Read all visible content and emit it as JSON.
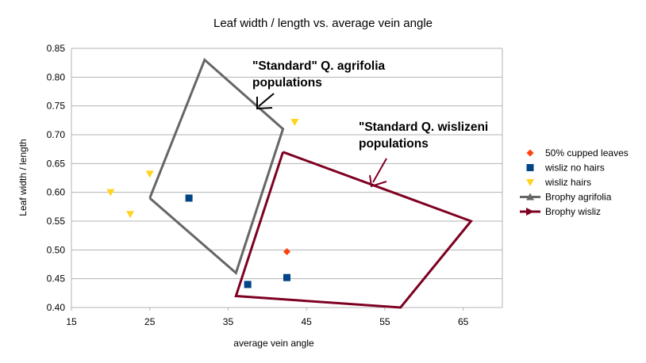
{
  "chart_data": {
    "type": "scatter",
    "title": "Leaf width / length vs. average vein angle",
    "xlabel": "average vein angle",
    "ylabel": "Leaf width / length",
    "xlim": [
      15,
      70
    ],
    "ylim": [
      0.4,
      0.85
    ],
    "x_ticks": [
      "15",
      "25",
      "35",
      "45",
      "55",
      "65"
    ],
    "y_ticks": [
      "0.40",
      "0.45",
      "0.50",
      "0.55",
      "0.60",
      "0.65",
      "0.70",
      "0.75",
      "0.80",
      "0.85"
    ],
    "grid": "horizontal",
    "legend_position": "right",
    "series": [
      {
        "name": "50% cupped leaves",
        "marker": "diamond",
        "color": "#ff420e",
        "points": [
          [
            42.5,
            0.497
          ]
        ]
      },
      {
        "name": "wisliz no hairs",
        "marker": "square",
        "color": "#004586",
        "points": [
          [
            30,
            0.59
          ],
          [
            37.5,
            0.44
          ],
          [
            42.5,
            0.452
          ]
        ]
      },
      {
        "name": "wisliz hairs",
        "marker": "triangle-down",
        "color": "#ffd320",
        "points": [
          [
            20,
            0.6
          ],
          [
            22.5,
            0.562
          ],
          [
            25,
            0.632
          ],
          [
            43.5,
            0.722
          ]
        ]
      },
      {
        "name": "Brophy agrifolia",
        "marker": "line-triangle",
        "color": "#666666",
        "points": [
          [
            25,
            0.59
          ],
          [
            32,
            0.83
          ],
          [
            42,
            0.71
          ],
          [
            36,
            0.46
          ],
          [
            25,
            0.59
          ]
        ]
      },
      {
        "name": "Brophy wisliz",
        "marker": "line-arrow",
        "color": "#7e0021",
        "points": [
          [
            42,
            0.67
          ],
          [
            66,
            0.55
          ],
          [
            57,
            0.4
          ],
          [
            36,
            0.42
          ],
          [
            42,
            0.67
          ]
        ]
      }
    ],
    "annotations": [
      {
        "text_lines": [
          "\"Standard\" Q. agrifolia",
          "populations"
        ]
      },
      {
        "text_lines": [
          "\"Standard Q. wislizeni",
          "populations"
        ]
      }
    ]
  }
}
